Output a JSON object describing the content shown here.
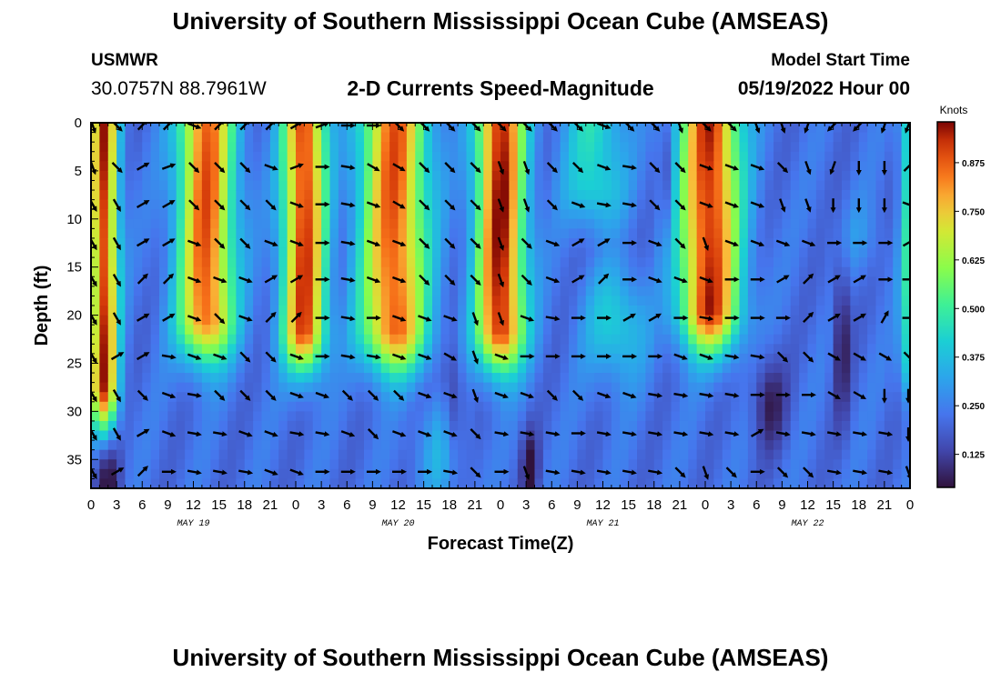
{
  "header": {
    "title": "University of Southern Mississippi Ocean Cube (AMSEAS)",
    "station": "USMWR",
    "location": "30.0757N  88.7961W",
    "subtitle": "2-D Currents Speed-Magnitude",
    "model_start_label": "Model Start Time",
    "model_start_value": "05/19/2022 Hour 00"
  },
  "footer": {
    "title": "University of Southern Mississippi Ocean Cube (AMSEAS)"
  },
  "chart_data": {
    "type": "heatmap",
    "title": "2-D Currents Speed-Magnitude",
    "xlabel": "Forecast Time(Z)",
    "ylabel": "Depth (ft)",
    "x_range_hours": [
      0,
      96
    ],
    "y_range_ft": [
      0,
      38
    ],
    "y_inverted": true,
    "x_tick_labels": [
      "0",
      "3",
      "6",
      "9",
      "12",
      "15",
      "18",
      "21",
      "0",
      "3",
      "6",
      "9",
      "12",
      "15",
      "18",
      "21",
      "0",
      "3",
      "6",
      "9",
      "12",
      "15",
      "18",
      "21",
      "0",
      "3",
      "6",
      "9",
      "12",
      "15",
      "18",
      "21",
      "0"
    ],
    "y_ticks": [
      0,
      5,
      10,
      15,
      20,
      25,
      30,
      35
    ],
    "day_labels": [
      {
        "label": "MAY 19",
        "hour": 12
      },
      {
        "label": "MAY 20",
        "hour": 36
      },
      {
        "label": "MAY 21",
        "hour": 60
      },
      {
        "label": "MAY 22",
        "hour": 84
      }
    ],
    "colorbar": {
      "title": "Knots",
      "ticks": [
        0.125,
        0.25,
        0.375,
        0.5,
        0.625,
        0.75,
        0.875
      ],
      "tick_labels": [
        "0.125",
        "0.250",
        "0.375",
        "0.500",
        "0.625",
        "0.750",
        "0.875"
      ],
      "range": [
        0.04,
        0.98
      ]
    },
    "surface_peaks": [
      {
        "center_hour": 1.5,
        "width": 1.6,
        "max": 0.93,
        "depth_scale": 33
      },
      {
        "center_hour": 13.5,
        "width": 3.2,
        "max": 0.88,
        "depth_scale": 26
      },
      {
        "center_hour": 25.0,
        "width": 2.5,
        "max": 0.92,
        "depth_scale": 27
      },
      {
        "center_hour": 35.5,
        "width": 3.8,
        "max": 0.88,
        "depth_scale": 27
      },
      {
        "center_hour": 48.0,
        "width": 2.8,
        "max": 0.96,
        "depth_scale": 27
      },
      {
        "center_hour": 59.0,
        "width": 3.5,
        "max": 0.45,
        "depth_scale": 12
      },
      {
        "center_hour": 72.5,
        "width": 3.5,
        "max": 0.94,
        "depth_scale": 25
      },
      {
        "center_hour": 95.5,
        "width": 0.8,
        "max": 0.45,
        "depth_scale": 30
      }
    ],
    "mid_blobs": [
      {
        "center_hour": 61.5,
        "depth": 21,
        "width": 3.5,
        "depth_width": 6,
        "value": 0.42
      },
      {
        "center_hour": 41.0,
        "depth": 34,
        "width": 3.0,
        "depth_width": 6,
        "value": 0.34
      },
      {
        "center_hour": 90.0,
        "depth": 12,
        "width": 3.0,
        "depth_width": 4,
        "value": 0.28
      }
    ],
    "slow_regions": [
      {
        "center_hour": 2.0,
        "depth": 37,
        "width": 1.5,
        "depth_width": 4,
        "value": 0.06
      },
      {
        "center_hour": 42.5,
        "depth": 30,
        "width": 1.2,
        "depth_width": 6,
        "value": 0.08
      },
      {
        "center_hour": 51.5,
        "depth": 36,
        "width": 1.0,
        "depth_width": 4,
        "value": 0.04
      },
      {
        "center_hour": 68.0,
        "depth": 6,
        "width": 0.8,
        "depth_width": 7,
        "value": 0.07
      },
      {
        "center_hour": 79.5,
        "depth": 29,
        "width": 2.0,
        "depth_width": 5,
        "value": 0.07
      },
      {
        "center_hour": 88.0,
        "depth": 22,
        "width": 1.0,
        "depth_width": 9,
        "value": 0.06
      }
    ],
    "vectors": {
      "hours": [
        0.2,
        3,
        6,
        9,
        12,
        15,
        18,
        21,
        24,
        27,
        30,
        33,
        36,
        39,
        42,
        45,
        48,
        51,
        54,
        57,
        60,
        63,
        66,
        69,
        72,
        75,
        78,
        81,
        84,
        87,
        90,
        93,
        95.8
      ],
      "depths_ft": [
        0,
        4.3,
        8.2,
        12.2,
        16,
        20,
        24,
        28,
        32,
        36
      ],
      "directions_deg": [
        [
          160,
          135,
          45,
          45,
          110,
          45,
          45,
          45,
          60,
          70,
          90,
          90,
          135,
          135,
          135,
          135,
          135,
          135,
          135,
          135,
          110,
          135,
          135,
          160,
          135,
          135,
          160,
          160,
          200,
          225,
          225,
          200,
          200
        ],
        [
          160,
          135,
          60,
          70,
          135,
          135,
          135,
          110,
          70,
          90,
          100,
          120,
          120,
          135,
          135,
          135,
          160,
          160,
          135,
          135,
          110,
          100,
          135,
          135,
          110,
          110,
          110,
          135,
          160,
          200,
          180,
          180,
          45
        ],
        [
          150,
          150,
          60,
          60,
          135,
          135,
          135,
          135,
          110,
          90,
          100,
          110,
          120,
          135,
          135,
          135,
          160,
          160,
          135,
          110,
          100,
          100,
          135,
          135,
          110,
          110,
          110,
          160,
          160,
          180,
          180,
          180,
          110
        ],
        [
          150,
          150,
          60,
          60,
          110,
          135,
          135,
          110,
          110,
          90,
          100,
          110,
          110,
          135,
          135,
          135,
          160,
          135,
          110,
          60,
          60,
          90,
          110,
          135,
          160,
          110,
          110,
          110,
          110,
          90,
          90,
          90,
          60
        ],
        [
          150,
          150,
          45,
          45,
          110,
          110,
          110,
          60,
          60,
          90,
          100,
          110,
          110,
          135,
          135,
          135,
          160,
          135,
          110,
          60,
          45,
          90,
          110,
          110,
          110,
          90,
          90,
          60,
          45,
          60,
          60,
          90,
          90
        ],
        [
          150,
          150,
          60,
          60,
          110,
          135,
          110,
          45,
          45,
          90,
          100,
          90,
          110,
          110,
          110,
          160,
          160,
          110,
          100,
          90,
          90,
          60,
          60,
          90,
          100,
          90,
          90,
          90,
          45,
          60,
          60,
          30,
          90
        ],
        [
          150,
          60,
          60,
          100,
          110,
          110,
          135,
          135,
          110,
          90,
          100,
          100,
          110,
          110,
          120,
          160,
          110,
          90,
          90,
          90,
          90,
          90,
          90,
          110,
          110,
          100,
          100,
          135,
          135,
          120,
          120,
          120,
          135
        ],
        [
          150,
          150,
          135,
          110,
          100,
          135,
          135,
          135,
          110,
          110,
          135,
          135,
          135,
          110,
          110,
          160,
          110,
          110,
          135,
          135,
          110,
          110,
          100,
          100,
          100,
          100,
          90,
          90,
          90,
          120,
          120,
          180,
          180
        ],
        [
          150,
          150,
          60,
          110,
          100,
          100,
          110,
          110,
          100,
          100,
          110,
          135,
          110,
          110,
          110,
          135,
          100,
          100,
          100,
          90,
          100,
          100,
          100,
          100,
          100,
          100,
          60,
          100,
          100,
          100,
          100,
          100,
          180
        ],
        [
          150,
          60,
          45,
          90,
          100,
          100,
          100,
          110,
          110,
          90,
          90,
          90,
          90,
          90,
          100,
          135,
          90,
          160,
          100,
          100,
          100,
          100,
          100,
          135,
          160,
          135,
          90,
          135,
          135,
          100,
          100,
          100,
          160
        ]
      ]
    }
  }
}
